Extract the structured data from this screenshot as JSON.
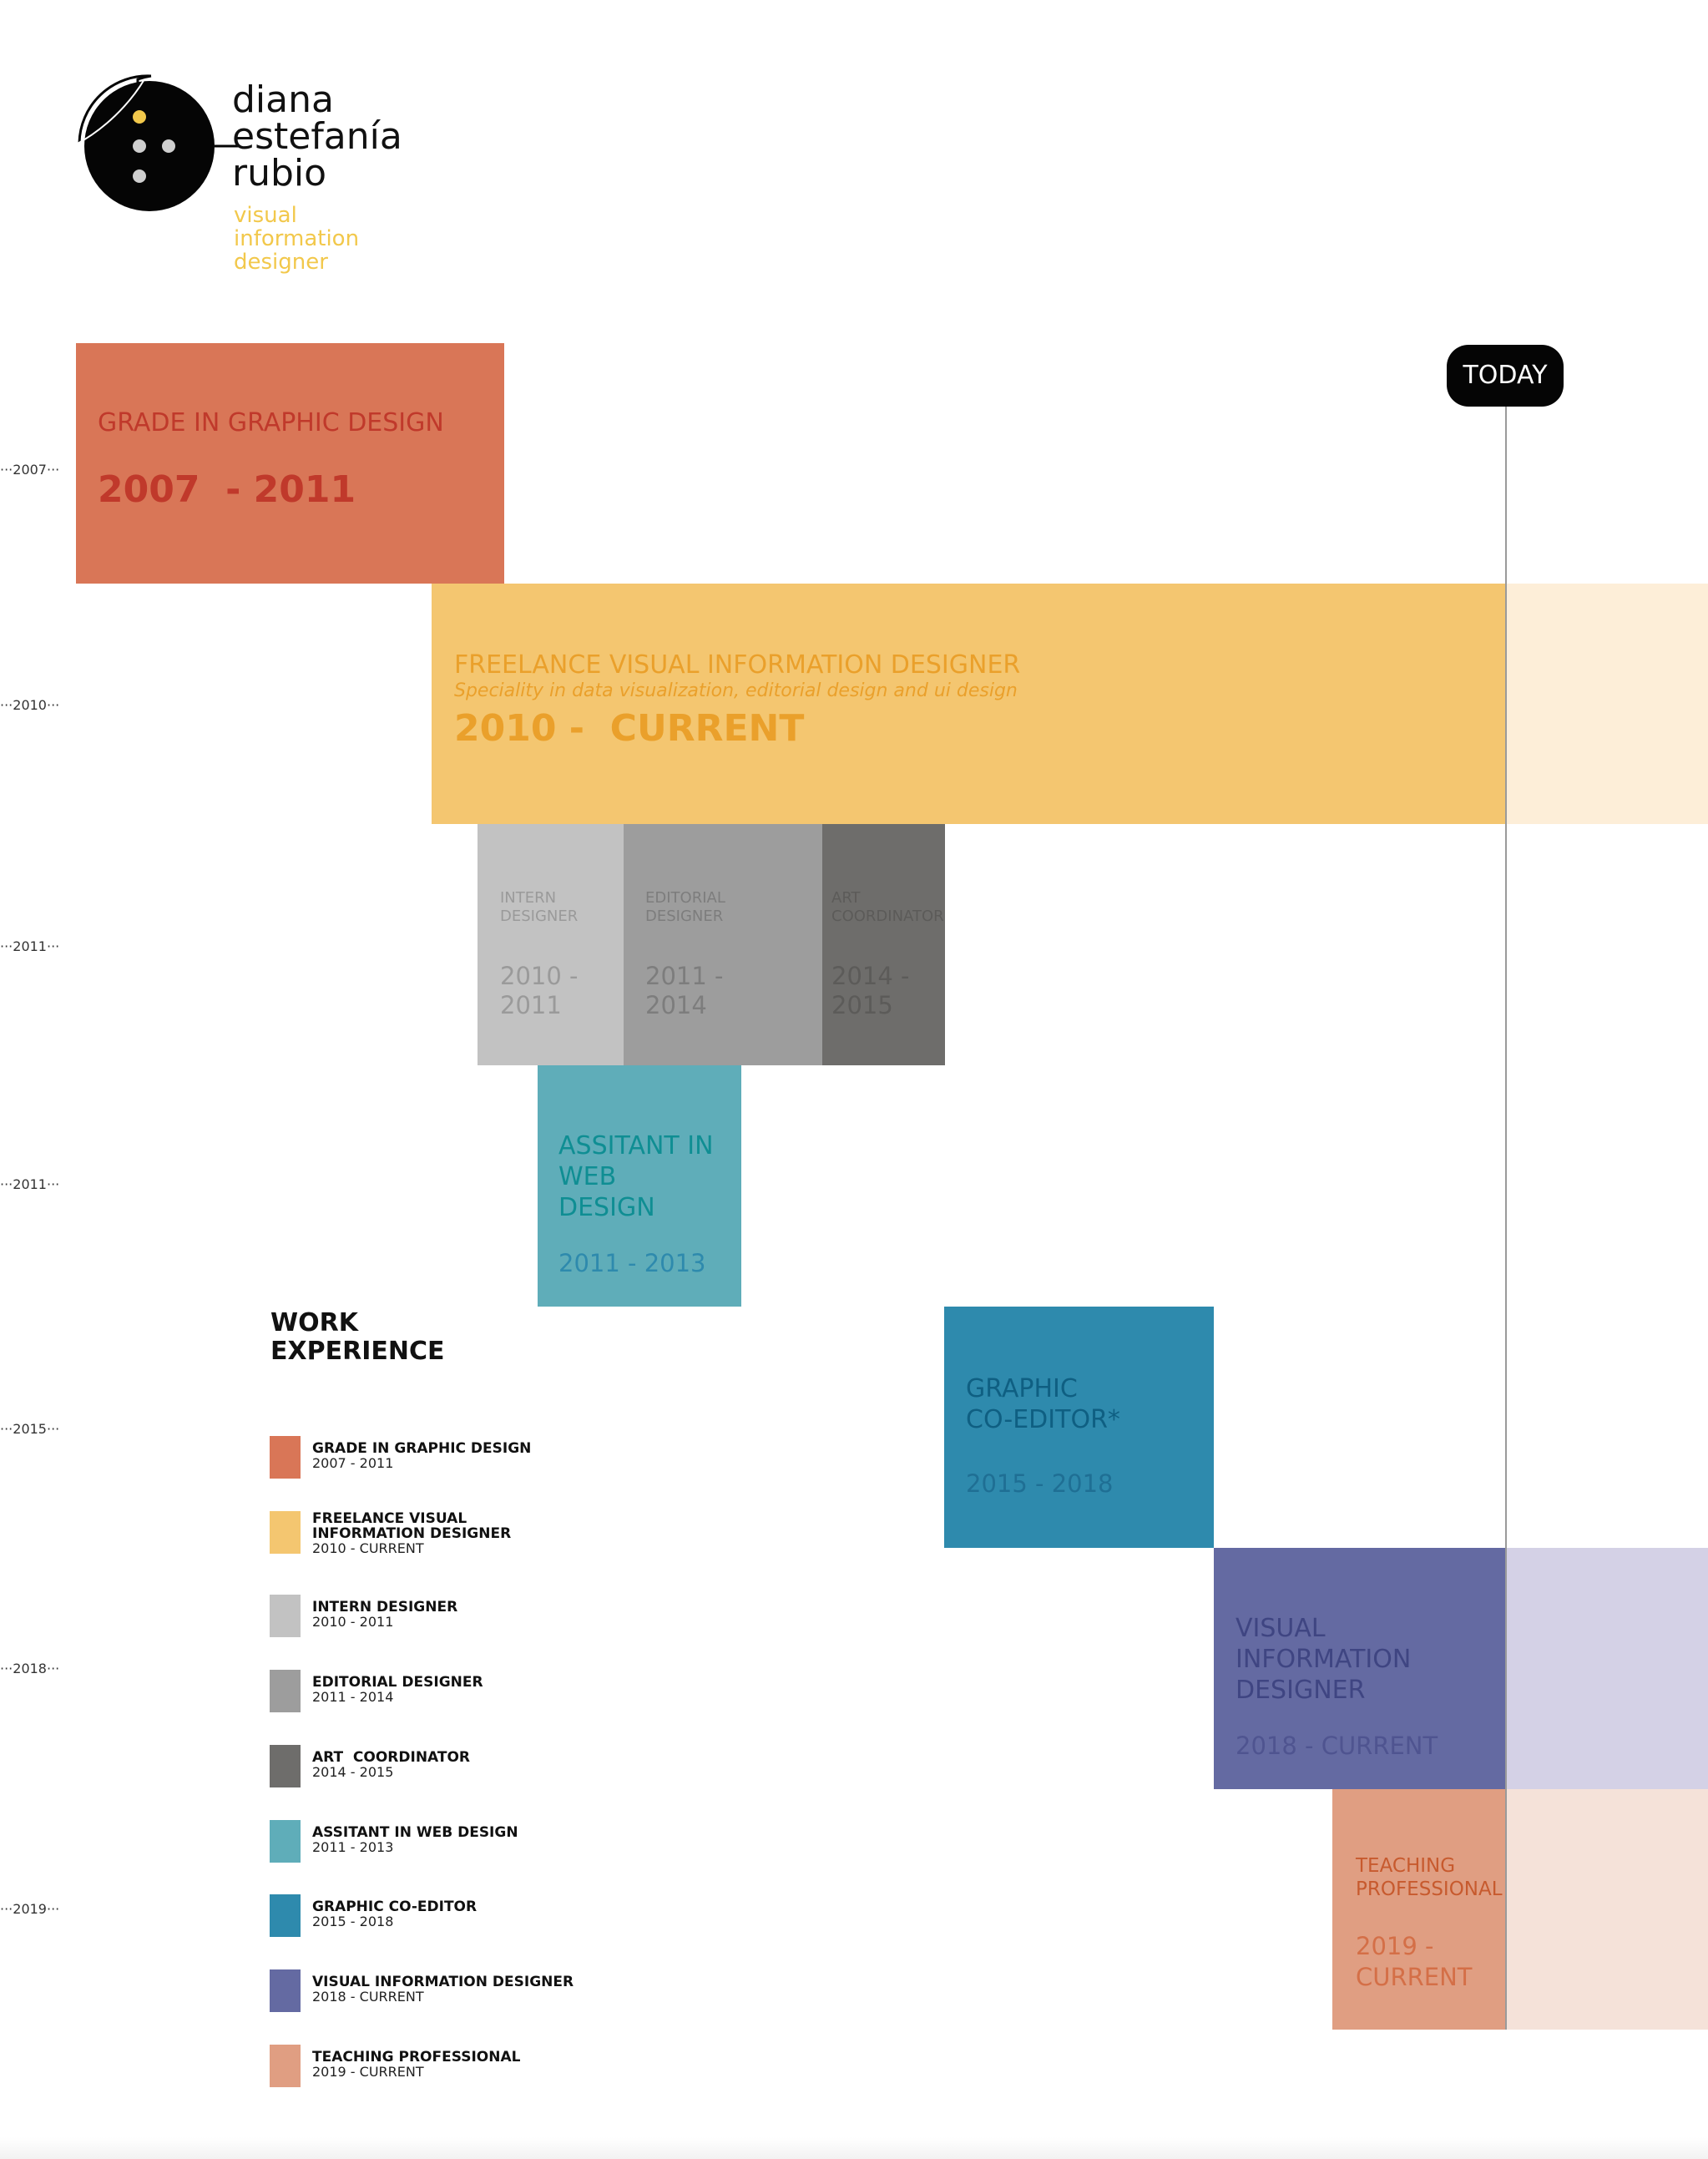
{
  "brand": {
    "name_line1": "diana",
    "name_line2": "estefanía",
    "name_line3": "rubio",
    "role_line1": "visual",
    "role_line2": "information",
    "role_line3": "designer",
    "accent_color": "#f2c84b"
  },
  "today_label": "TODAY",
  "year_markers": [
    "2007",
    "2010",
    "2011",
    "2011",
    "2015",
    "2018",
    "2019"
  ],
  "blocks": {
    "grade": {
      "title": "GRADE IN GRAPHIC DESIGN",
      "years": "2007  - 2011",
      "color": "#d97657"
    },
    "freelance": {
      "title": "FREELANCE VISUAL INFORMATION DESIGNER",
      "subtitle": "Speciality in data visualization, editorial design and ui design",
      "years": "2010 -  CURRENT",
      "color": "#f4c670"
    },
    "intern": {
      "title_l1": "INTERN",
      "title_l2": "DESIGNER",
      "years_l1": "2010 -",
      "years_l2": "2011",
      "color": "#c2c2c2"
    },
    "editorial": {
      "title_l1": "EDITORIAL",
      "title_l2": "DESIGNER",
      "years_l1": "2011 -",
      "years_l2": "2014",
      "color": "#9d9d9d"
    },
    "art": {
      "title_l1": "ART",
      "title_l2": "COORDINATOR",
      "years_l1": "2014 -",
      "years_l2": "2015",
      "color": "#6e6d6b"
    },
    "web": {
      "title_l1": "ASSITANT IN",
      "title_l2": "WEB",
      "title_l3": "DESIGN",
      "years": "2011 - 2013",
      "color": "#5fadb9"
    },
    "coeditor": {
      "title_l1": "GRAPHIC",
      "title_l2": "CO-EDITOR*",
      "years": "2015 - 2018",
      "color": "#2e8aad"
    },
    "visual": {
      "title_l1": "VISUAL",
      "title_l2": "INFORMATION",
      "title_l3": "DESIGNER",
      "years": "2018 - CURRENT",
      "color": "#646aa2"
    },
    "teaching": {
      "title_l1": "TEACHING",
      "title_l2": "PROFESSIONAL",
      "years_l1": "2019 -",
      "years_l2": "CURRENT",
      "color": "#e09e82"
    }
  },
  "legend": {
    "heading_l1": "WORK",
    "heading_l2": "EXPERIENCE",
    "items": [
      {
        "name": "GRADE IN GRAPHIC DESIGN",
        "years": "2007 - 2011",
        "color": "#d97657"
      },
      {
        "name_l1": "FREELANCE VISUAL",
        "name_l2": "INFORMATION DESIGNER",
        "years": "2010 - CURRENT",
        "color": "#f4c670"
      },
      {
        "name": "INTERN DESIGNER",
        "years": "2010 - 2011",
        "color": "#c2c2c2"
      },
      {
        "name": "EDITORIAL DESIGNER",
        "years": "2011 - 2014",
        "color": "#9d9d9d"
      },
      {
        "name": "ART  COORDINATOR",
        "years": "2014 - 2015",
        "color": "#6e6d6b"
      },
      {
        "name": "ASSITANT IN WEB DESIGN",
        "years": "2011 - 2013",
        "color": "#5fadb9"
      },
      {
        "name": "GRAPHIC CO-EDITOR",
        "years": "2015 - 2018",
        "color": "#2e8aad"
      },
      {
        "name": "VISUAL INFORMATION DESIGNER",
        "years": "2018 - CURRENT",
        "color": "#646aa2"
      },
      {
        "name": "TEACHING PROFESSIONAL",
        "years": "2019 - CURRENT",
        "color": "#e09e82"
      }
    ]
  }
}
